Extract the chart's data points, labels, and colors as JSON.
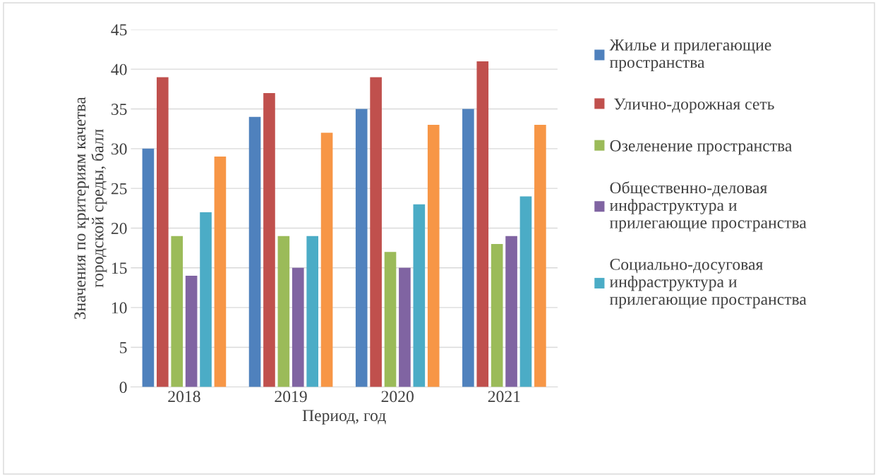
{
  "chart_data": {
    "type": "bar",
    "xlabel": "Период, год",
    "ylabel": "Значения по критериям качетва\nгородской среды, балл",
    "categories": [
      "2018",
      "2019",
      "2020",
      "2021"
    ],
    "series": [
      {
        "name": "Жилье и прилегающие\nпространства",
        "color": "#4f81bd",
        "values": [
          30,
          34,
          35,
          35
        ]
      },
      {
        "name": " Улично-дорожная сеть",
        "color": "#c0504d",
        "values": [
          39,
          37,
          39,
          41
        ]
      },
      {
        "name": "Озеленение пространства",
        "color": "#9bbb59",
        "values": [
          19,
          19,
          17,
          18
        ]
      },
      {
        "name": "Общественно-деловая\nинфраструктура и\nприлегающие пространства",
        "color": "#8064a2",
        "values": [
          14,
          15,
          15,
          19
        ]
      },
      {
        "name": "Социально-досуговая\nинфраструктура и\nприлегающие пространства",
        "color": "#4bacc6",
        "values": [
          22,
          19,
          23,
          24
        ]
      },
      {
        "color": "#f79646",
        "values": [
          29,
          32,
          33,
          33
        ]
      }
    ],
    "ylim": [
      0,
      45
    ],
    "yticks": [
      0,
      5,
      10,
      15,
      20,
      25,
      30,
      35,
      40,
      45
    ],
    "grid": "y",
    "legend": "right"
  }
}
